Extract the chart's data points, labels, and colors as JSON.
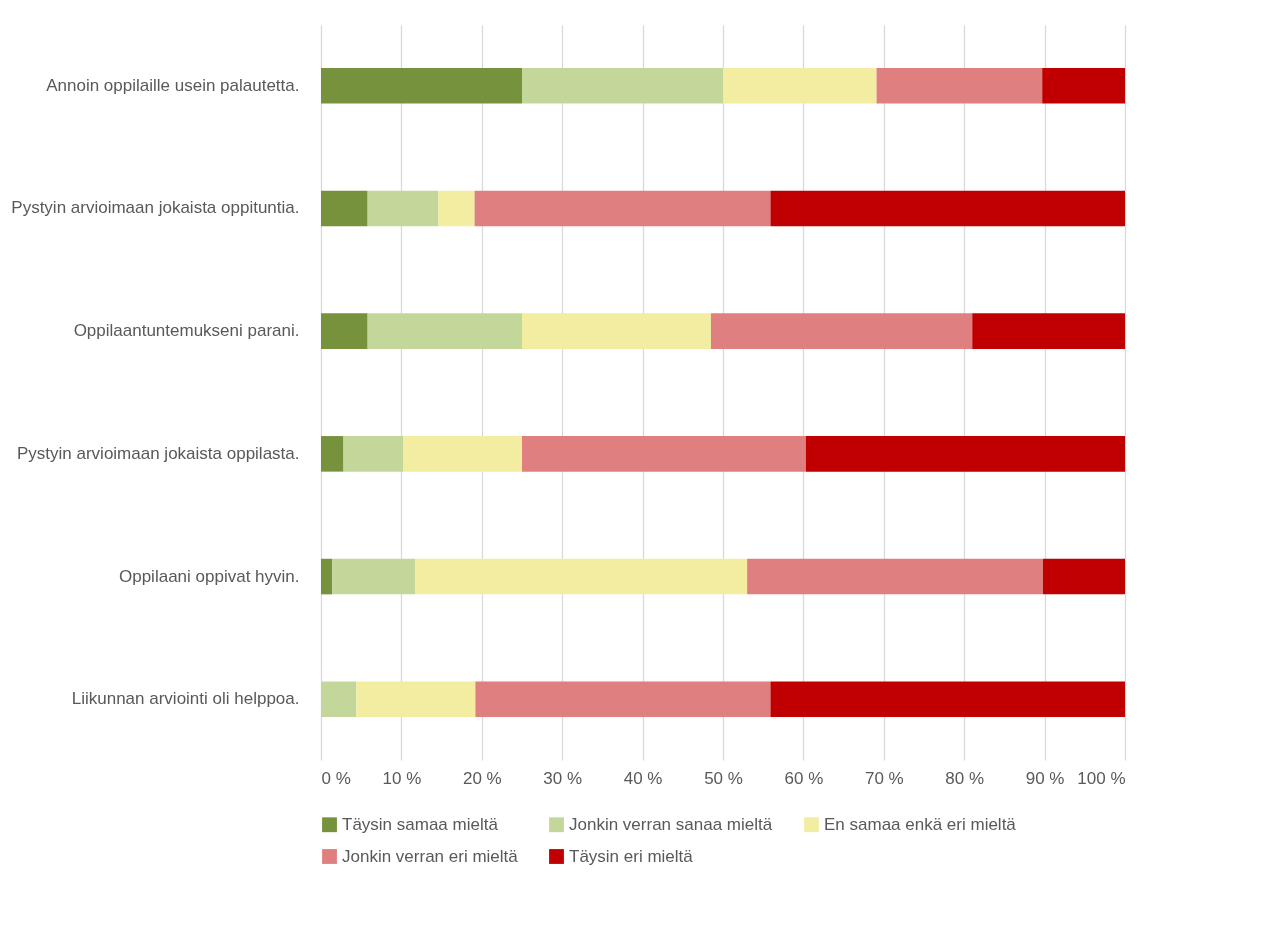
{
  "chart_data": {
    "type": "bar",
    "orientation": "horizontal",
    "stacked": true,
    "categories": [
      "Annoin oppilaille usein palautetta.",
      "Pystyin arvioimaan jokaista oppituntia.",
      "Oppilaantuntemukseni parani.",
      "Pystyin arvioimaan jokaista oppilasta.",
      "Oppilaani oppivat hyvin.",
      "Liikunnan arviointi oli helppoa."
    ],
    "series": [
      {
        "name": "Täysin samaa mieltä",
        "color": "#76923c",
        "values": [
          25,
          5.8,
          5.8,
          2.8,
          1.4,
          0
        ]
      },
      {
        "name": "Jonkin verran sanaa mieltä",
        "color": "#c4d79b",
        "values": [
          25,
          8.8,
          19.2,
          7.4,
          10.3,
          4.4
        ]
      },
      {
        "name": "En samaa enkä eri mieltä",
        "color": "#f2eda0",
        "values": [
          19.1,
          4.5,
          23.5,
          14.8,
          41.3,
          14.8
        ]
      },
      {
        "name": "Jonkin verran eri mieltä",
        "color": "#e07f7f",
        "values": [
          20.6,
          36.8,
          32.5,
          35.3,
          36.8,
          36.7
        ]
      },
      {
        "name": "Täysin eri mieltä",
        "color": "#c00000",
        "values": [
          10.3,
          44.1,
          19.0,
          39.7,
          10.2,
          44.1
        ]
      }
    ],
    "xlim": [
      0,
      100
    ],
    "xticks": [
      {
        "value": 0,
        "label": "0 %"
      },
      {
        "value": 10,
        "label": "10 %"
      },
      {
        "value": 20,
        "label": "20 %"
      },
      {
        "value": 30,
        "label": "30 %"
      },
      {
        "value": 40,
        "label": "40 %"
      },
      {
        "value": 50,
        "label": "50 %"
      },
      {
        "value": 60,
        "label": "60 %"
      },
      {
        "value": 70,
        "label": "70 %"
      },
      {
        "value": 80,
        "label": "80 %"
      },
      {
        "value": 90,
        "label": "90 %"
      },
      {
        "value": 100,
        "label": "100 %"
      }
    ],
    "grid": "x",
    "legend": "bottom"
  }
}
